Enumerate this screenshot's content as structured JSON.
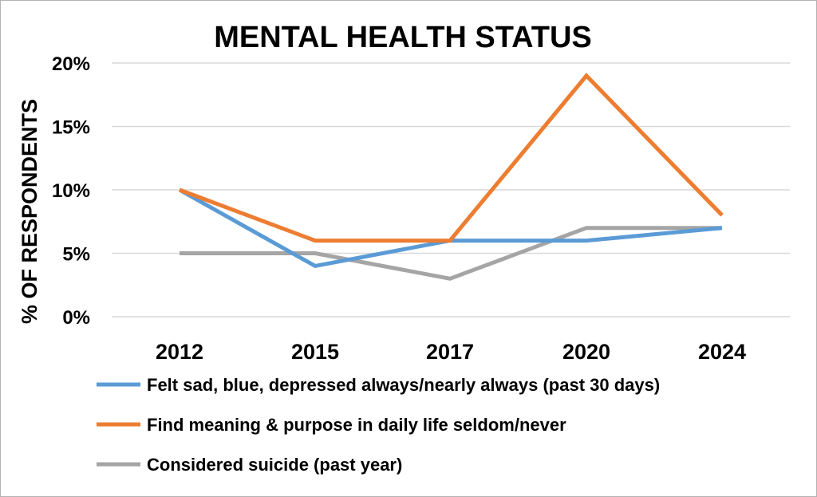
{
  "chart_data": {
    "type": "line",
    "title": "MENTAL HEALTH STATUS",
    "xlabel": "",
    "ylabel": "% OF RESPONDENTS",
    "categories": [
      "2012",
      "2015",
      "2017",
      "2020",
      "2024"
    ],
    "ylim": [
      0,
      20
    ],
    "yticks": [
      "0%",
      "5%",
      "10%",
      "15%",
      "20%"
    ],
    "grid": true,
    "legend": "bottom",
    "series": [
      {
        "name": "Felt sad, blue, depressed always/nearly always (past 30 days)",
        "values": [
          10,
          4,
          6,
          6,
          7
        ],
        "color": "#5b9bd5"
      },
      {
        "name": "Find meaning & purpose in daily life seldom/never",
        "values": [
          10,
          6,
          6,
          19,
          8
        ],
        "color": "#ed7d31"
      },
      {
        "name": "Considered suicide (past year)",
        "values": [
          5,
          5,
          3,
          7,
          7
        ],
        "color": "#a5a5a5"
      }
    ]
  }
}
